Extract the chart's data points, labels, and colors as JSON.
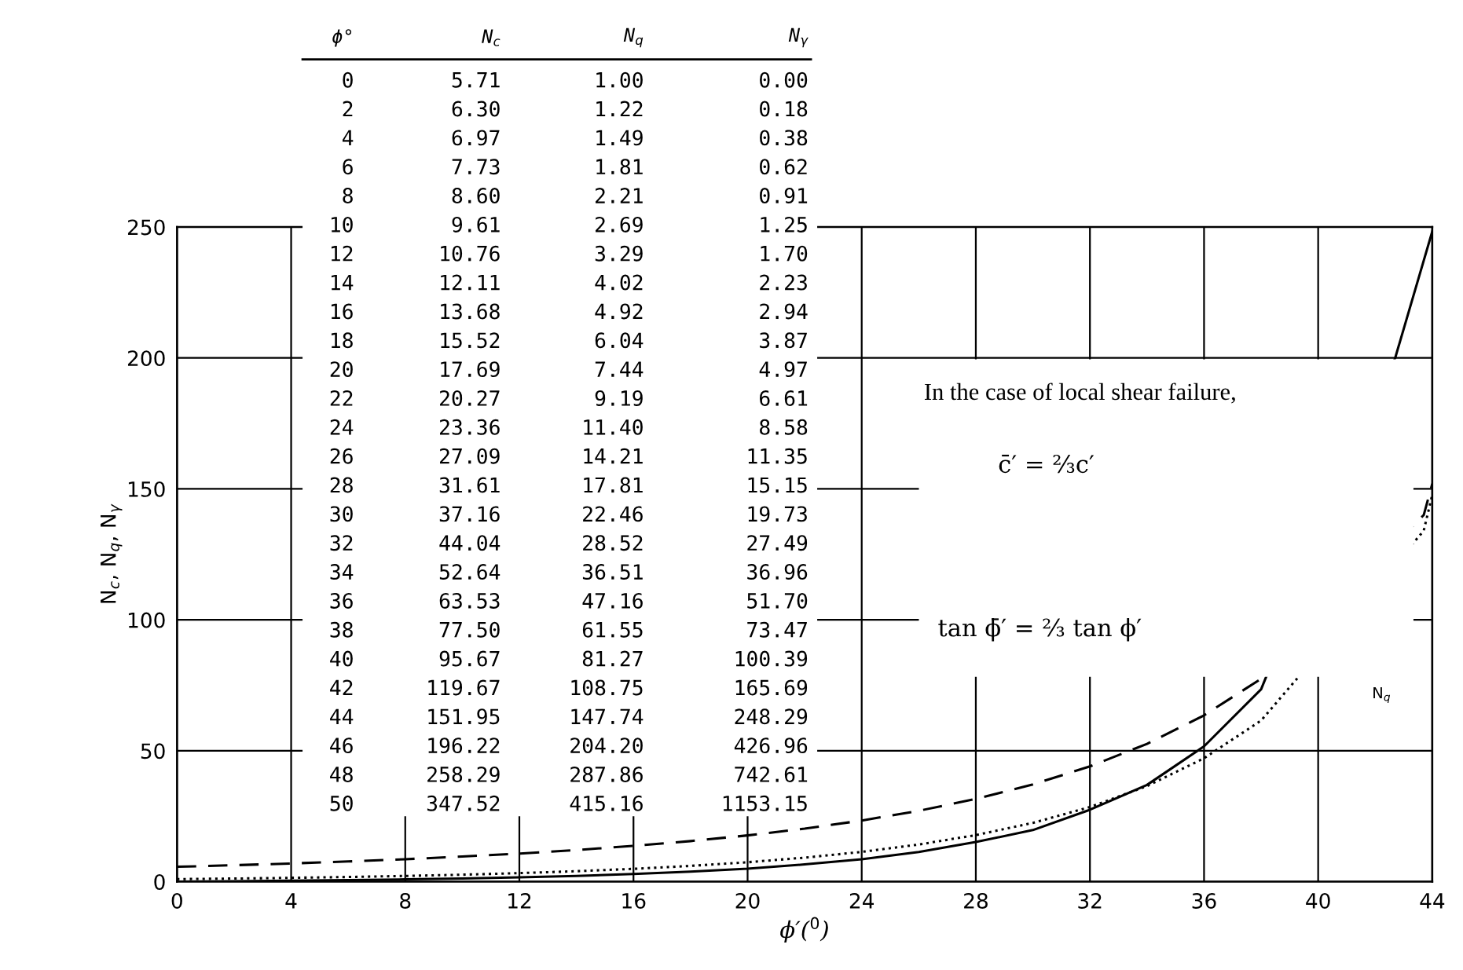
{
  "chart_data": {
    "type": "line",
    "xlabel": "ϕ′($^{0}$)",
    "ylabel": "N$_{c}$, N$_{q}$, N$_{γ}$",
    "series": [
      {
        "color": "#000000",
        "line_style": "dashed",
        "x": [
          0,
          2,
          4,
          6,
          8,
          10,
          12,
          14,
          16,
          18,
          20,
          22,
          24,
          26,
          28,
          30,
          32,
          34,
          36,
          38,
          43.7,
          44
        ],
        "values": [
          5.71,
          6.3,
          6.97,
          7.73,
          8.6,
          9.61,
          10.76,
          12.11,
          13.68,
          15.52,
          17.69,
          20.27,
          23.36,
          27.09,
          31.61,
          37.16,
          44.04,
          52.64,
          63.53,
          77.5,
          140,
          151.95
        ]
      },
      {
        "color": "#000000",
        "line_style": "dotted",
        "x": [
          0,
          2,
          4,
          6,
          8,
          10,
          12,
          14,
          16,
          18,
          20,
          22,
          24,
          26,
          28,
          30,
          32,
          34,
          36,
          38,
          43.7,
          44
        ],
        "values": [
          1.0,
          1.22,
          1.49,
          1.81,
          2.21,
          2.69,
          3.29,
          4.02,
          4.92,
          6.04,
          7.44,
          9.19,
          11.4,
          14.21,
          17.81,
          22.46,
          28.52,
          36.51,
          47.16,
          61.55,
          134,
          147.74
        ]
      },
      {
        "color": "#000000",
        "line_style": "solid",
        "x": [
          0,
          2,
          4,
          6,
          8,
          10,
          12,
          14,
          16,
          18,
          20,
          22,
          24,
          26,
          28,
          30,
          32,
          34,
          36,
          38,
          42.7,
          44
        ],
        "values": [
          0.0,
          0.18,
          0.38,
          0.62,
          0.91,
          1.25,
          1.7,
          2.23,
          2.94,
          3.87,
          4.97,
          6.61,
          8.58,
          11.35,
          15.15,
          19.73,
          27.49,
          36.96,
          51.7,
          73.47,
          200,
          248.29
        ]
      }
    ],
    "xlim": [
      0,
      44
    ],
    "xticks": [
      0,
      4,
      8,
      12,
      16,
      20,
      24,
      28,
      32,
      36,
      40,
      44
    ],
    "ylim": [
      0,
      250
    ],
    "yticks": [
      0,
      50,
      100,
      150,
      200,
      250
    ],
    "grid": true,
    "marker": "none",
    "annotations": [
      "ϕ° N$_{c}$ N$_{q}$ N$_{γ}$",
      "0 5.71 1.00 0.00",
      "2 6.30 1.22 0.18",
      "4 6.97 1.49 0.38",
      "6 7.73 1.81 0.62",
      "8 8.60 2.21 0.91",
      "10 9.61 2.69 1.25",
      "12 10.76 3.29 1.70",
      "14 12.11 4.02 2.23",
      "16 13.68 4.92 2.94",
      "18 15.52 6.04 3.87",
      "20 17.69 7.44 4.97",
      "22 20.27 9.19 6.61",
      "24 23.36 11.40 8.58",
      "26 27.09 14.21 11.35",
      "28 31.61 17.81 15.15",
      "30 37.16 22.46 19.73",
      "32 44.04 28.52 27.49",
      "34 52.64 36.51 36.96",
      "36 63.53 47.16 51.70",
      "38 77.50 61.55 73.47",
      "40 95.67 81.27 100.39",
      "42 119.67 108.75 165.69",
      "44 151.95 147.74 248.29",
      "46 196.22 204.20 426.96",
      "48 258.29 287.86 742.61",
      "50 347.52 415.16 1153.15",
      "In the case of local shear failure,",
      "c̄′ = ²⁄₃c′",
      "tan ϕ̄′ = ²⁄₃ tan ϕ′",
      "N$_{q}$"
    ]
  }
}
